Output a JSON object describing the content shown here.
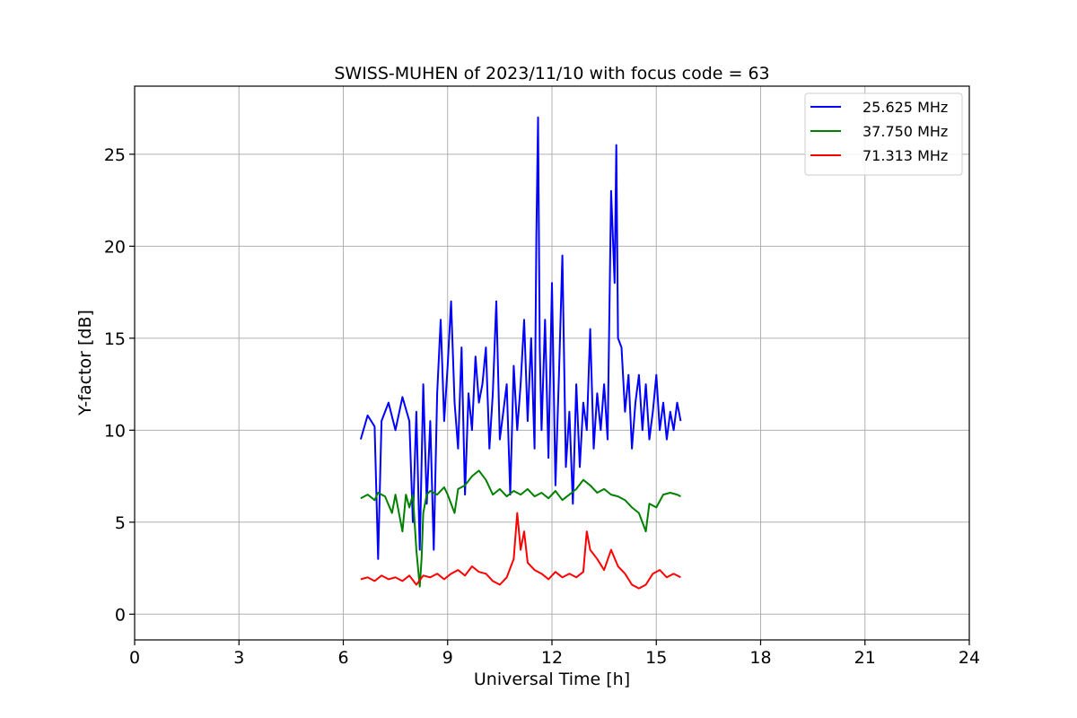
{
  "chart_data": {
    "type": "line",
    "title": "SWISS-MUHEN of 2023/11/10 with focus code = 63",
    "xlabel": "Universal Time [h]",
    "ylabel": "Y-factor [dB]",
    "xlim": [
      0,
      24
    ],
    "ylim": [
      -1.4,
      28.7
    ],
    "xticks": [
      0,
      3,
      6,
      9,
      12,
      15,
      18,
      21,
      24
    ],
    "yticks": [
      0,
      5,
      10,
      15,
      20,
      25
    ],
    "grid": true,
    "legend_position": "top-right",
    "series": [
      {
        "name": "25.625 MHz",
        "color": "#0000ff",
        "points": [
          [
            6.5,
            9.5
          ],
          [
            6.7,
            10.8
          ],
          [
            6.9,
            10.2
          ],
          [
            7.0,
            3.0
          ],
          [
            7.1,
            10.5
          ],
          [
            7.3,
            11.5
          ],
          [
            7.5,
            10.0
          ],
          [
            7.7,
            11.8
          ],
          [
            7.9,
            10.5
          ],
          [
            8.0,
            5.0
          ],
          [
            8.1,
            11.0
          ],
          [
            8.2,
            3.5
          ],
          [
            8.3,
            12.5
          ],
          [
            8.4,
            6.0
          ],
          [
            8.5,
            10.5
          ],
          [
            8.6,
            3.5
          ],
          [
            8.7,
            12.0
          ],
          [
            8.8,
            16.0
          ],
          [
            8.9,
            10.5
          ],
          [
            9.0,
            13.5
          ],
          [
            9.1,
            17.0
          ],
          [
            9.2,
            11.5
          ],
          [
            9.3,
            9.0
          ],
          [
            9.4,
            14.5
          ],
          [
            9.5,
            6.5
          ],
          [
            9.6,
            12.0
          ],
          [
            9.7,
            10.0
          ],
          [
            9.8,
            14.0
          ],
          [
            9.9,
            11.5
          ],
          [
            10.0,
            12.5
          ],
          [
            10.1,
            14.5
          ],
          [
            10.2,
            9.0
          ],
          [
            10.3,
            12.0
          ],
          [
            10.4,
            17.0
          ],
          [
            10.5,
            9.5
          ],
          [
            10.6,
            11.0
          ],
          [
            10.7,
            12.5
          ],
          [
            10.8,
            6.5
          ],
          [
            10.9,
            13.5
          ],
          [
            11.0,
            10.0
          ],
          [
            11.1,
            12.5
          ],
          [
            11.2,
            16.0
          ],
          [
            11.3,
            10.5
          ],
          [
            11.4,
            15.0
          ],
          [
            11.5,
            9.0
          ],
          [
            11.55,
            20.5
          ],
          [
            11.6,
            27.0
          ],
          [
            11.65,
            14.5
          ],
          [
            11.7,
            10.0
          ],
          [
            11.8,
            16.0
          ],
          [
            11.9,
            8.5
          ],
          [
            12.0,
            18.0
          ],
          [
            12.1,
            7.0
          ],
          [
            12.2,
            13.0
          ],
          [
            12.3,
            19.5
          ],
          [
            12.4,
            8.0
          ],
          [
            12.5,
            11.0
          ],
          [
            12.6,
            6.0
          ],
          [
            12.7,
            12.5
          ],
          [
            12.8,
            8.0
          ],
          [
            12.9,
            11.5
          ],
          [
            13.0,
            10.0
          ],
          [
            13.1,
            15.5
          ],
          [
            13.2,
            9.0
          ],
          [
            13.3,
            12.0
          ],
          [
            13.4,
            10.0
          ],
          [
            13.5,
            12.5
          ],
          [
            13.6,
            9.5
          ],
          [
            13.7,
            23.0
          ],
          [
            13.8,
            18.0
          ],
          [
            13.85,
            25.5
          ],
          [
            13.9,
            15.0
          ],
          [
            14.0,
            14.5
          ],
          [
            14.1,
            11.0
          ],
          [
            14.2,
            13.0
          ],
          [
            14.3,
            9.0
          ],
          [
            14.4,
            11.5
          ],
          [
            14.5,
            13.0
          ],
          [
            14.6,
            10.0
          ],
          [
            14.7,
            12.5
          ],
          [
            14.8,
            9.5
          ],
          [
            14.9,
            11.0
          ],
          [
            15.0,
            13.0
          ],
          [
            15.1,
            10.0
          ],
          [
            15.2,
            11.5
          ],
          [
            15.3,
            9.5
          ],
          [
            15.4,
            11.0
          ],
          [
            15.5,
            10.0
          ],
          [
            15.6,
            11.5
          ],
          [
            15.7,
            10.5
          ]
        ]
      },
      {
        "name": "37.750 MHz",
        "color": "#008000",
        "points": [
          [
            6.5,
            6.3
          ],
          [
            6.7,
            6.5
          ],
          [
            6.9,
            6.2
          ],
          [
            7.0,
            6.6
          ],
          [
            7.2,
            6.4
          ],
          [
            7.4,
            5.5
          ],
          [
            7.5,
            6.5
          ],
          [
            7.7,
            4.5
          ],
          [
            7.8,
            6.5
          ],
          [
            7.9,
            5.8
          ],
          [
            8.0,
            6.5
          ],
          [
            8.1,
            3.5
          ],
          [
            8.2,
            1.5
          ],
          [
            8.25,
            3.0
          ],
          [
            8.3,
            5.5
          ],
          [
            8.4,
            6.5
          ],
          [
            8.5,
            6.7
          ],
          [
            8.7,
            6.5
          ],
          [
            8.9,
            6.9
          ],
          [
            9.0,
            6.5
          ],
          [
            9.2,
            5.5
          ],
          [
            9.3,
            6.8
          ],
          [
            9.5,
            7.0
          ],
          [
            9.7,
            7.5
          ],
          [
            9.9,
            7.8
          ],
          [
            10.1,
            7.3
          ],
          [
            10.3,
            6.5
          ],
          [
            10.5,
            6.8
          ],
          [
            10.7,
            6.4
          ],
          [
            10.9,
            6.7
          ],
          [
            11.1,
            6.5
          ],
          [
            11.3,
            6.8
          ],
          [
            11.5,
            6.4
          ],
          [
            11.7,
            6.6
          ],
          [
            11.9,
            6.3
          ],
          [
            12.1,
            6.7
          ],
          [
            12.3,
            6.2
          ],
          [
            12.5,
            6.5
          ],
          [
            12.7,
            6.8
          ],
          [
            12.9,
            7.3
          ],
          [
            13.1,
            7.0
          ],
          [
            13.3,
            6.6
          ],
          [
            13.5,
            6.8
          ],
          [
            13.7,
            6.5
          ],
          [
            13.9,
            6.4
          ],
          [
            14.1,
            6.2
          ],
          [
            14.3,
            5.8
          ],
          [
            14.5,
            5.5
          ],
          [
            14.7,
            4.5
          ],
          [
            14.8,
            6.0
          ],
          [
            15.0,
            5.8
          ],
          [
            15.2,
            6.5
          ],
          [
            15.4,
            6.6
          ],
          [
            15.6,
            6.5
          ],
          [
            15.7,
            6.4
          ]
        ]
      },
      {
        "name": "71.313 MHz",
        "color": "#ff0000",
        "points": [
          [
            6.5,
            1.9
          ],
          [
            6.7,
            2.0
          ],
          [
            6.9,
            1.8
          ],
          [
            7.1,
            2.1
          ],
          [
            7.3,
            1.9
          ],
          [
            7.5,
            2.0
          ],
          [
            7.7,
            1.8
          ],
          [
            7.9,
            2.1
          ],
          [
            8.1,
            1.6
          ],
          [
            8.3,
            2.1
          ],
          [
            8.5,
            2.0
          ],
          [
            8.7,
            2.2
          ],
          [
            8.9,
            1.9
          ],
          [
            9.1,
            2.2
          ],
          [
            9.3,
            2.4
          ],
          [
            9.5,
            2.1
          ],
          [
            9.7,
            2.6
          ],
          [
            9.9,
            2.3
          ],
          [
            10.1,
            2.2
          ],
          [
            10.3,
            1.8
          ],
          [
            10.5,
            1.6
          ],
          [
            10.7,
            2.0
          ],
          [
            10.9,
            3.0
          ],
          [
            11.0,
            5.5
          ],
          [
            11.1,
            3.5
          ],
          [
            11.2,
            4.5
          ],
          [
            11.3,
            2.8
          ],
          [
            11.5,
            2.4
          ],
          [
            11.7,
            2.2
          ],
          [
            11.9,
            1.9
          ],
          [
            12.1,
            2.3
          ],
          [
            12.3,
            2.0
          ],
          [
            12.5,
            2.2
          ],
          [
            12.7,
            2.0
          ],
          [
            12.9,
            2.3
          ],
          [
            13.0,
            4.5
          ],
          [
            13.1,
            3.5
          ],
          [
            13.3,
            3.0
          ],
          [
            13.5,
            2.4
          ],
          [
            13.7,
            3.5
          ],
          [
            13.9,
            2.6
          ],
          [
            14.1,
            2.2
          ],
          [
            14.3,
            1.6
          ],
          [
            14.5,
            1.4
          ],
          [
            14.7,
            1.6
          ],
          [
            14.9,
            2.2
          ],
          [
            15.1,
            2.4
          ],
          [
            15.3,
            2.0
          ],
          [
            15.5,
            2.2
          ],
          [
            15.7,
            2.0
          ]
        ]
      }
    ]
  }
}
